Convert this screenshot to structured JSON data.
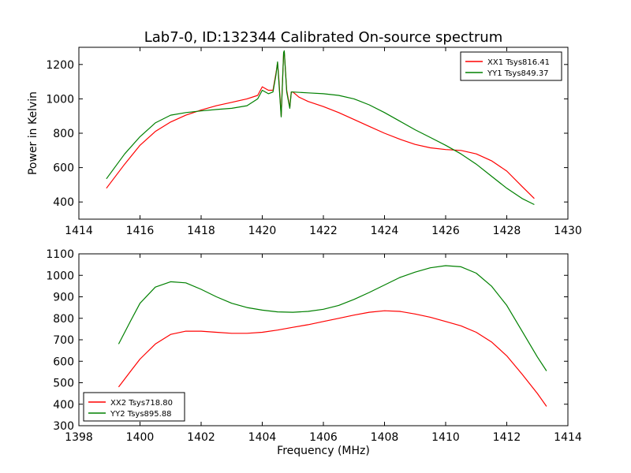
{
  "chart_data": [
    {
      "type": "line",
      "title": "Lab7-0, ID:132344 Calibrated On-source spectrum",
      "xlabel": "",
      "ylabel": "Power in Kelvin",
      "xlim": [
        1414,
        1430
      ],
      "ylim": [
        300,
        1300
      ],
      "xticks": [
        "1414",
        "1416",
        "1418",
        "1420",
        "1422",
        "1424",
        "1426",
        "1428",
        "1430"
      ],
      "yticks": [
        "400",
        "600",
        "800",
        "1000",
        "1200"
      ],
      "grid": false,
      "legend": "top-right",
      "series": [
        {
          "name": "XX1 Tsys816.41",
          "color": "#ff0000",
          "x": [
            1414.9,
            1415.5,
            1416.0,
            1416.5,
            1417.0,
            1417.5,
            1418.0,
            1418.5,
            1419.0,
            1419.5,
            1419.85,
            1420.0,
            1420.2,
            1420.35,
            1420.45,
            1420.5,
            1420.55,
            1420.62,
            1420.7,
            1420.72,
            1420.8,
            1420.9,
            1420.95,
            1421.0,
            1421.2,
            1421.5,
            1422.0,
            1422.5,
            1423.0,
            1423.5,
            1424.0,
            1424.5,
            1425.0,
            1425.5,
            1426.0,
            1426.5,
            1427.0,
            1427.5,
            1428.0,
            1428.5,
            1428.9
          ],
          "y": [
            480,
            620,
            730,
            810,
            865,
            905,
            935,
            960,
            980,
            1000,
            1020,
            1070,
            1050,
            1050,
            1150,
            1210,
            1100,
            900,
            1270,
            1275,
            1050,
            950,
            1040,
            1040,
            1010,
            985,
            955,
            920,
            880,
            840,
            800,
            765,
            735,
            715,
            705,
            700,
            680,
            640,
            580,
            490,
            420
          ]
        },
        {
          "name": "YY1 Tsys849.37",
          "color": "#008000",
          "x": [
            1414.9,
            1415.5,
            1416.0,
            1416.5,
            1417.0,
            1417.5,
            1418.0,
            1418.5,
            1419.0,
            1419.5,
            1419.85,
            1420.0,
            1420.2,
            1420.35,
            1420.45,
            1420.5,
            1420.55,
            1420.62,
            1420.7,
            1420.72,
            1420.8,
            1420.9,
            1420.95,
            1421.0,
            1421.5,
            1422.0,
            1422.5,
            1423.0,
            1423.5,
            1424.0,
            1424.5,
            1425.0,
            1425.5,
            1426.0,
            1426.5,
            1427.0,
            1427.5,
            1428.0,
            1428.5,
            1428.9
          ],
          "y": [
            535,
            680,
            780,
            860,
            905,
            920,
            930,
            938,
            945,
            960,
            1000,
            1050,
            1030,
            1040,
            1140,
            1215,
            1080,
            895,
            1270,
            1280,
            1040,
            945,
            1040,
            1040,
            1035,
            1030,
            1020,
            1000,
            965,
            920,
            870,
            820,
            775,
            730,
            680,
            620,
            550,
            480,
            420,
            385
          ]
        }
      ]
    },
    {
      "type": "line",
      "title": "",
      "xlabel": "Frequency (MHz)",
      "ylabel": "",
      "xlim": [
        1398,
        1414
      ],
      "ylim": [
        300,
        1100
      ],
      "xticks": [
        "1398",
        "1400",
        "1402",
        "1404",
        "1406",
        "1408",
        "1410",
        "1412",
        "1414"
      ],
      "yticks": [
        "300",
        "400",
        "500",
        "600",
        "700",
        "800",
        "900",
        "1000",
        "1100"
      ],
      "grid": false,
      "legend": "bottom-left",
      "series": [
        {
          "name": "XX2 Tsys718.80",
          "color": "#ff0000",
          "x": [
            1399.3,
            1399.7,
            1400.0,
            1400.5,
            1401.0,
            1401.5,
            1402.0,
            1402.5,
            1403.0,
            1403.5,
            1404.0,
            1404.5,
            1405.0,
            1405.5,
            1406.0,
            1406.5,
            1407.0,
            1407.5,
            1408.0,
            1408.5,
            1409.0,
            1409.5,
            1410.0,
            1410.5,
            1411.0,
            1411.5,
            1412.0,
            1412.5,
            1413.0,
            1413.3
          ],
          "y": [
            480,
            555,
            610,
            680,
            725,
            740,
            740,
            735,
            730,
            730,
            735,
            745,
            758,
            770,
            785,
            800,
            815,
            828,
            835,
            832,
            820,
            805,
            785,
            765,
            735,
            690,
            625,
            540,
            450,
            390
          ]
        },
        {
          "name": "YY2 Tsys895.88",
          "color": "#008000",
          "x": [
            1399.3,
            1399.7,
            1400.0,
            1400.5,
            1401.0,
            1401.5,
            1402.0,
            1402.5,
            1403.0,
            1403.5,
            1404.0,
            1404.5,
            1405.0,
            1405.5,
            1406.0,
            1406.5,
            1407.0,
            1407.5,
            1408.0,
            1408.5,
            1409.0,
            1409.5,
            1410.0,
            1410.5,
            1411.0,
            1411.5,
            1412.0,
            1412.5,
            1413.0,
            1413.3
          ],
          "y": [
            680,
            790,
            870,
            945,
            970,
            965,
            935,
            900,
            870,
            850,
            838,
            830,
            828,
            832,
            842,
            860,
            888,
            920,
            955,
            990,
            1015,
            1035,
            1045,
            1040,
            1010,
            950,
            860,
            740,
            620,
            555
          ]
        }
      ]
    }
  ]
}
